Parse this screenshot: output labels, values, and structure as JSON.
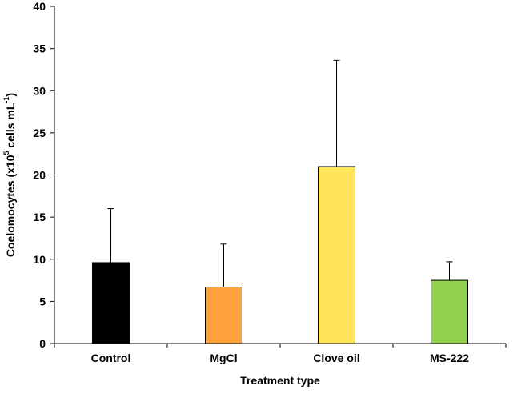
{
  "chart_data": {
    "type": "bar",
    "categories": [
      "Control",
      "MgCl",
      "Clove oil",
      "MS-222"
    ],
    "values": [
      9.6,
      6.7,
      21.0,
      7.5
    ],
    "error_upper": [
      16.0,
      11.8,
      33.6,
      9.7
    ],
    "colors": [
      "#000000",
      "#FFA13D",
      "#FFE45C",
      "#92D050"
    ],
    "title": "",
    "xlabel": "Treatment type",
    "ylabel_parts": {
      "main": "Coelomocytes (x10",
      "sup1": "5",
      "mid": " cells mL",
      "sup2": "-1",
      "end": ")"
    },
    "ylim": [
      0,
      40
    ],
    "yticks": [
      0,
      5,
      10,
      15,
      20,
      25,
      30,
      35,
      40
    ],
    "grid": false,
    "legend": "none"
  }
}
